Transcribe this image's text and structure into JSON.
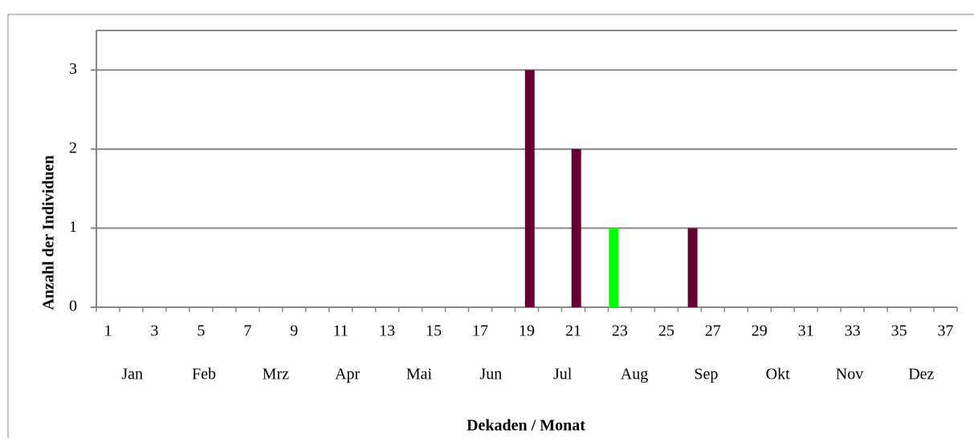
{
  "chart_data": {
    "type": "bar",
    "x_label": "Dekaden / Monat",
    "y_label": "Anzahl der Individuen",
    "categories": [
      1,
      null,
      3,
      null,
      5,
      null,
      7,
      null,
      9,
      null,
      11,
      null,
      13,
      null,
      15,
      null,
      17,
      null,
      19,
      null,
      21,
      null,
      23,
      null,
      25,
      null,
      27,
      null,
      29,
      null,
      31,
      null,
      33,
      null,
      35,
      null,
      37
    ],
    "months": [
      "Jan",
      "Feb",
      "Mrz",
      "Apr",
      "Mai",
      "Jun",
      "Jul",
      "Aug",
      "Sep",
      "Okt",
      "Nov",
      "Dez"
    ],
    "series": [
      {
        "color": "#00ff00",
        "values": [
          0,
          0,
          0,
          0,
          0,
          0,
          0,
          0,
          0,
          0,
          0,
          0,
          0,
          0,
          0,
          0,
          0,
          0,
          0,
          0,
          0,
          0,
          1,
          0,
          0,
          0,
          0,
          0,
          0,
          0,
          0,
          0,
          0,
          0,
          0,
          0,
          0
        ]
      },
      {
        "color": "#660033",
        "values": [
          0,
          0,
          0,
          0,
          0,
          0,
          0,
          0,
          0,
          0,
          0,
          0,
          0,
          0,
          0,
          0,
          0,
          0,
          3,
          0,
          2,
          0,
          0,
          0,
          0,
          1,
          0,
          0,
          0,
          0,
          0,
          0,
          0,
          0,
          0,
          0,
          0
        ]
      }
    ],
    "ylim": [
      0,
      3.5
    ],
    "yticks": [
      0,
      1,
      2,
      3
    ],
    "grid": true
  }
}
